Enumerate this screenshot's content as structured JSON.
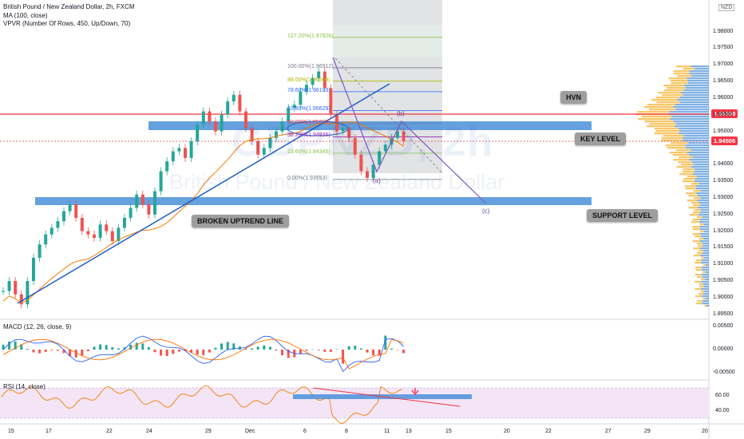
{
  "header": {
    "title": "British Pound / New Zealand Dollar, 2h, FXCM",
    "line2": "MA (100, close)",
    "line3": "VPVR (Number Of Rows, 450, Up/Down, 70)",
    "currency": "NZD"
  },
  "watermark": {
    "symbol": "GBPNZD, 2h",
    "name": "British Pound / New Zealand Dollar"
  },
  "annotations": {
    "hvn": "HVN",
    "key_level": "KEY LEVEL",
    "support_level": "SUPPORT LEVEL",
    "broken_uptrend": "BROKEN UPTREND LINE",
    "wave_a": "(a)",
    "wave_b": "(b)",
    "wave_c": "(c)"
  },
  "price_tags": {
    "red": {
      "value": "1.95308",
      "color": "#f23645"
    },
    "current": {
      "value": "1.94506",
      "color": "#f23645"
    }
  },
  "colors": {
    "up": "#26a69a",
    "down": "#ef5350",
    "ma": "#f57c00",
    "zone": "#4a90d9",
    "trend": "#1e5fc4",
    "hvn_line": "#f23645",
    "macd": "#2962ff",
    "signal": "#ff6d00",
    "rsi": "#f57c00",
    "rsi_band": "#e1bee7"
  },
  "chart_data": [
    {
      "type": "candlestick",
      "panel": "price",
      "y_axis_ticks": [
        "1.98000",
        "1.97500",
        "1.97000",
        "1.96500",
        "1.96000",
        "1.95500",
        "1.95000",
        "1.94000",
        "1.93500",
        "1.93000",
        "1.92500",
        "1.92000",
        "1.91500",
        "1.91000",
        "1.90500",
        "1.90000",
        "1.89500"
      ],
      "ylim": [
        1.8935,
        1.9895
      ],
      "x_ticks": [
        "15",
        "17",
        "22",
        "24",
        "29",
        "Dec",
        "6",
        "8",
        "11",
        "13",
        "15",
        "20",
        "22",
        "27",
        "29",
        "20"
      ],
      "close_path": [
        [
          0,
          1.902
        ],
        [
          1,
          1.905
        ],
        [
          2,
          1.901
        ],
        [
          3,
          1.898
        ],
        [
          4,
          1.905
        ],
        [
          5,
          1.912
        ],
        [
          6,
          1.916
        ],
        [
          7,
          1.919
        ],
        [
          8,
          1.921
        ],
        [
          9,
          1.923
        ],
        [
          10,
          1.926
        ],
        [
          11,
          1.928
        ],
        [
          12,
          1.924
        ],
        [
          13,
          1.92
        ],
        [
          14,
          1.919
        ],
        [
          15,
          1.918
        ],
        [
          16,
          1.922
        ],
        [
          17,
          1.92
        ],
        [
          18,
          1.917
        ],
        [
          19,
          1.921
        ],
        [
          20,
          1.924
        ],
        [
          21,
          1.927
        ],
        [
          22,
          1.931
        ],
        [
          23,
          1.928
        ],
        [
          24,
          1.925
        ],
        [
          25,
          1.932
        ],
        [
          26,
          1.938
        ],
        [
          27,
          1.941
        ],
        [
          28,
          1.944
        ],
        [
          29,
          1.945
        ],
        [
          30,
          1.942
        ],
        [
          31,
          1.947
        ],
        [
          32,
          1.952
        ],
        [
          33,
          1.956
        ],
        [
          34,
          1.953
        ],
        [
          35,
          1.95
        ],
        [
          36,
          1.955
        ],
        [
          37,
          1.959
        ],
        [
          38,
          1.961
        ],
        [
          39,
          1.956
        ],
        [
          40,
          1.951
        ],
        [
          41,
          1.947
        ],
        [
          42,
          1.943
        ],
        [
          43,
          1.945
        ],
        [
          44,
          1.948
        ],
        [
          45,
          1.95
        ],
        [
          46,
          1.953
        ],
        [
          47,
          1.957
        ],
        [
          48,
          1.958
        ],
        [
          49,
          1.962
        ],
        [
          50,
          1.964
        ],
        [
          51,
          1.966
        ],
        [
          52,
          1.968
        ],
        [
          53,
          1.963
        ],
        [
          54,
          1.955
        ],
        [
          55,
          1.95
        ],
        [
          56,
          1.951
        ],
        [
          57,
          1.948
        ],
        [
          58,
          1.943
        ],
        [
          59,
          1.938
        ],
        [
          60,
          1.936
        ],
        [
          61,
          1.94
        ],
        [
          62,
          1.944
        ],
        [
          63,
          1.946
        ],
        [
          64,
          1.948
        ],
        [
          65,
          1.95
        ],
        [
          66,
          1.947
        ]
      ],
      "fibonacci": [
        {
          "label": "127.20%(1.97826)",
          "value": 1.97826,
          "color": "#8bc34a"
        },
        {
          "label": "100.00%(1.96912)",
          "value": 1.96912,
          "color": "#787b86"
        },
        {
          "label": "88.00%(1.96509)",
          "value": 1.96509,
          "color": "#aab800"
        },
        {
          "label": "78.60%(1.96193)",
          "value": 1.96193,
          "color": "#2962ff"
        },
        {
          "label": "61.80%(1.95629)",
          "value": 1.95629,
          "color": "#2962ff"
        },
        {
          "label": "50.00%(1.95232)",
          "value": 1.95232,
          "color": "#f23645"
        },
        {
          "label": "38.20%(1.94835)",
          "value": 1.94835,
          "color": "#9c27b0"
        },
        {
          "label": "23.60%(1.94345)",
          "value": 1.94345,
          "color": "#8bc34a"
        },
        {
          "label": "0.00%(1.93553)",
          "value": 1.93553,
          "color": "#787b86"
        }
      ],
      "levels": {
        "hvn": 1.95308,
        "key_zone": [
          1.9487,
          1.9505
        ],
        "support_zone": [
          1.9264,
          1.9282
        ]
      }
    },
    {
      "type": "bar_line",
      "panel": "MACD",
      "title": "MACD (12, 26, close, 9)",
      "y_axis_ticks": [
        "0.00500",
        "0.00000",
        "-0.00500"
      ],
      "ylim": [
        -0.0065,
        0.0065
      ]
    },
    {
      "type": "line",
      "panel": "RSI",
      "title": "RSI (14, close)",
      "y_axis_ticks": [
        "60.00",
        "40.00"
      ],
      "ylim": [
        20,
        80
      ]
    }
  ]
}
